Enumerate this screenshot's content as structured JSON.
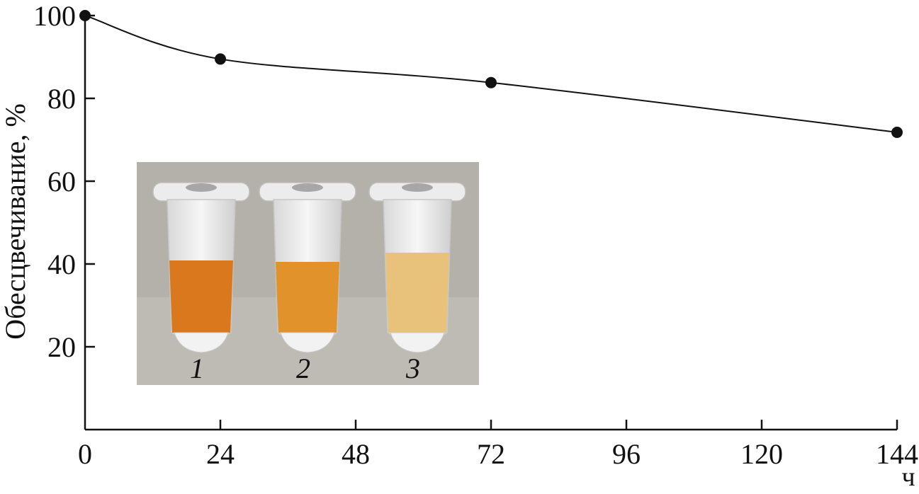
{
  "chart_data": {
    "type": "line",
    "ylabel": "Обесцвечивание, %",
    "xunit": "ч",
    "x": [
      0,
      24,
      72,
      144
    ],
    "y": [
      100,
      89.5,
      83.8,
      71.8
    ],
    "xlim": [
      0,
      144
    ],
    "ylim": [
      0,
      100
    ],
    "xticks": [
      "0",
      "24",
      "48",
      "72",
      "96",
      "120",
      "144"
    ],
    "yticks": [
      "20",
      "40",
      "60",
      "80",
      "100"
    ],
    "grid": false,
    "inset": {
      "tube_labels": [
        "1",
        "2",
        "3"
      ],
      "tube_colors": [
        "#d9781c",
        "#e2922a",
        "#e8c27a"
      ],
      "background_color": "#b4b1ab"
    },
    "colors": {
      "line": "#111111",
      "marker": "#111111"
    }
  }
}
